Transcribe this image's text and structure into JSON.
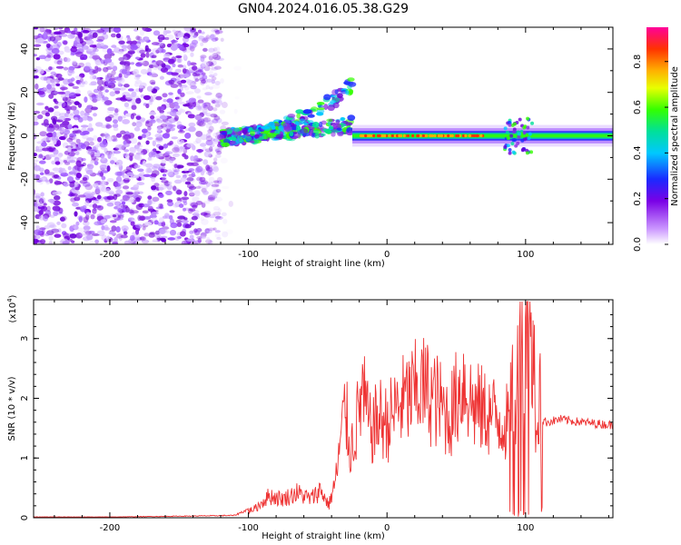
{
  "title": "GN04.2024.016.05.38.G29",
  "chart_data": [
    {
      "type": "heatmap",
      "name": "spectrogram",
      "xlabel": "Height of straight line (km)",
      "ylabel": "Frequency (Hz)",
      "xlim": [
        -255,
        163
      ],
      "ylim": [
        -50,
        50
      ],
      "xticks": [
        "-200",
        "-100",
        "0",
        "100"
      ],
      "yticks": [
        "-40",
        "-20",
        "0",
        "20",
        "40"
      ],
      "colorbar": {
        "label": "Normalized spectral amplitude",
        "ticks": [
          "0.0",
          "0.2",
          "0.4",
          "0.6",
          "0.8"
        ],
        "range": [
          0,
          0.95
        ]
      },
      "features": [
        {
          "region": "noise",
          "x": [
            -255,
            -120
          ],
          "y": [
            -50,
            50
          ],
          "amplitude": 0.12
        },
        {
          "region": "rising-tone",
          "x": [
            -120,
            -25
          ],
          "y": [
            -3,
            25
          ],
          "amplitude": 0.35
        },
        {
          "region": "signal-line",
          "x": [
            -25,
            163
          ],
          "y": [
            -1,
            1
          ],
          "amplitude": 0.9
        }
      ]
    },
    {
      "type": "line",
      "name": "snr",
      "xlabel": "Height of straight line (km)",
      "ylabel": "SNR (10 * v/v)",
      "scale_label": "(x10",
      "scale_exp": "4",
      "scale_close": ")",
      "xlim": [
        -255,
        163
      ],
      "ylim": [
        0,
        3.65
      ],
      "xticks": [
        "-200",
        "-100",
        "0",
        "100"
      ],
      "yticks": [
        "0",
        "1",
        "2",
        "3"
      ],
      "color": "#ee3333",
      "series": [
        {
          "x": [
            -255,
            -200,
            -150,
            -110,
            -95,
            -85,
            -75,
            -65,
            -55,
            -48,
            -42,
            -37,
            -33,
            -30,
            -27,
            -25,
            -22,
            -18,
            -12,
            -5,
            0,
            8,
            15,
            25,
            35,
            45,
            55,
            62,
            70,
            80,
            88,
            93,
            97,
            100,
            103,
            107,
            115,
            125,
            140,
            163
          ],
          "y": [
            0.01,
            0.01,
            0.02,
            0.03,
            0.15,
            0.35,
            0.3,
            0.4,
            0.3,
            0.45,
            0.2,
            0.6,
            1.3,
            1.8,
            1.1,
            1.2,
            1.5,
            2.0,
            1.4,
            1.6,
            1.5,
            1.8,
            1.9,
            2.1,
            1.9,
            1.6,
            2.2,
            1.8,
            1.7,
            1.6,
            1.5,
            1.9,
            3.0,
            2.5,
            3.6,
            1.7,
            1.6,
            1.65,
            1.6,
            1.55
          ]
        }
      ]
    }
  ]
}
